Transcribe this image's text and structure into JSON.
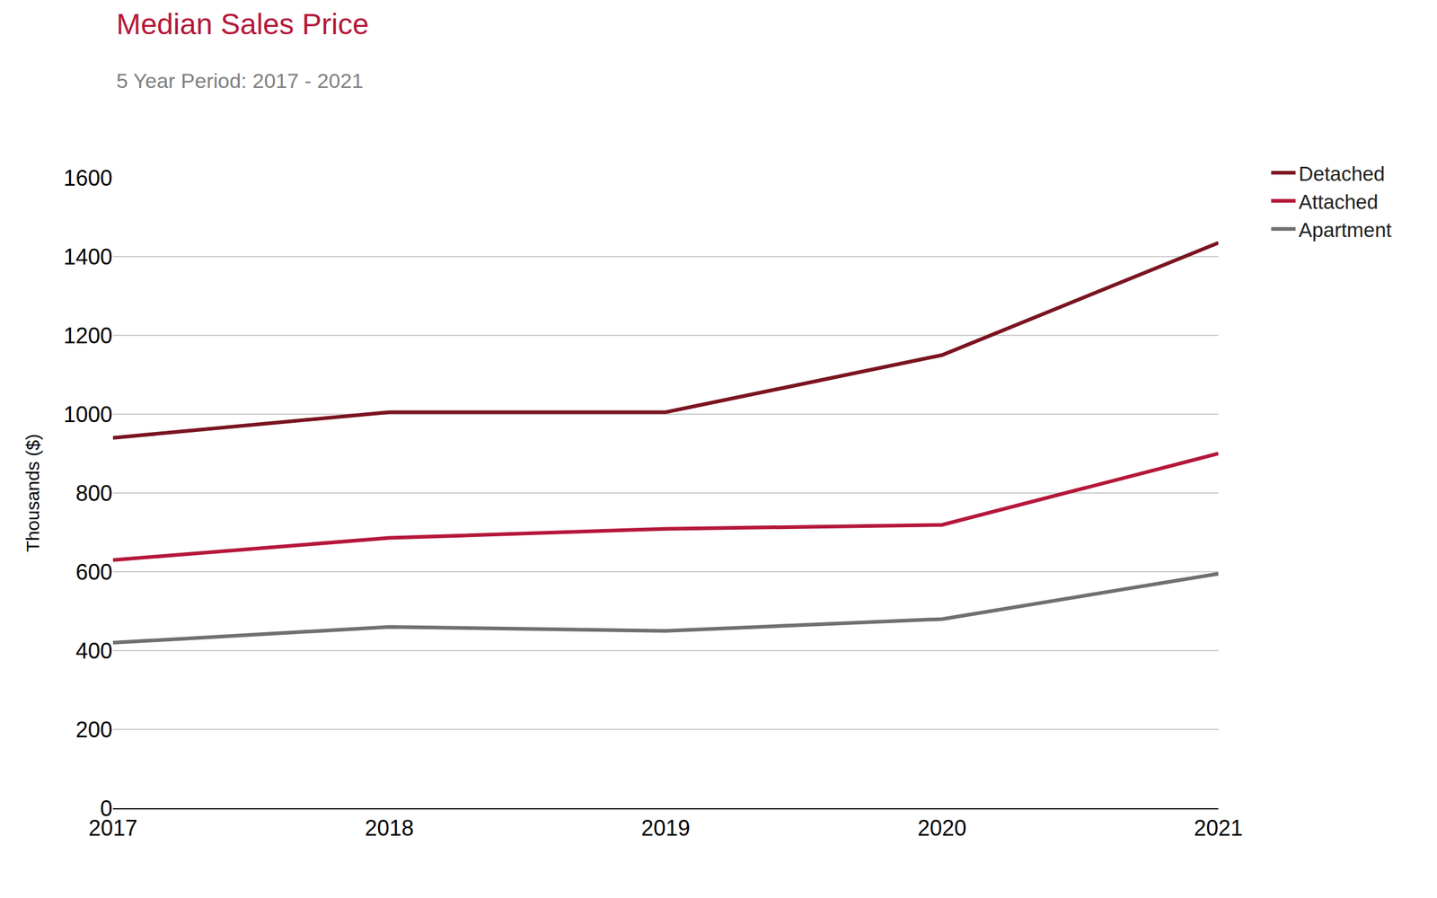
{
  "chart_data": {
    "type": "line",
    "title": "Median Sales Price",
    "subtitle": "5 Year Period: 2017 - 2021",
    "y_label": "Thousands ($)",
    "categories": [
      "2017",
      "2018",
      "2019",
      "2020",
      "2021"
    ],
    "series": [
      {
        "name": "Detached",
        "color": "#7a1420",
        "values": [
          940,
          1005,
          1005,
          1150,
          1435
        ]
      },
      {
        "name": "Attached",
        "color": "#b5173a",
        "values": [
          630,
          686,
          709,
          719,
          900
        ]
      },
      {
        "name": "Apartment",
        "color": "#707070",
        "values": [
          420,
          460,
          450,
          480,
          595
        ]
      }
    ],
    "ylim": [
      0,
      1600
    ],
    "yticks": [
      0,
      200,
      400,
      600,
      800,
      1000,
      1200,
      1400,
      1600
    ],
    "grid": true,
    "legend": "top right"
  }
}
